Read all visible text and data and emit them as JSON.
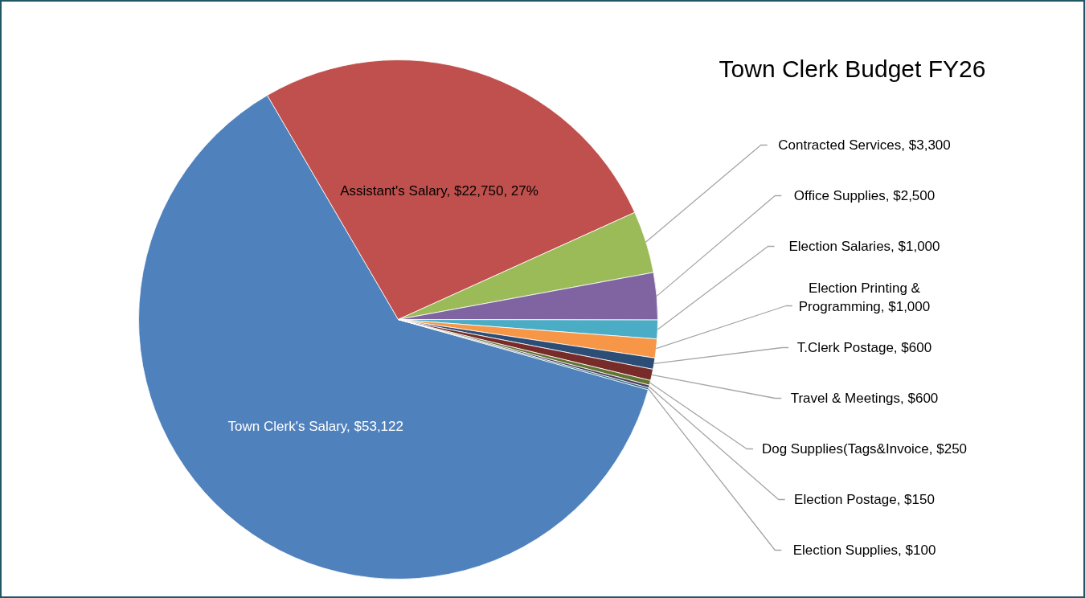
{
  "chart_data": {
    "type": "pie",
    "title": "Town Clerk Budget FY26",
    "categories": [
      "Town Clerk's Salary",
      "Assistant's Salary",
      "Contracted Services",
      "Office Supplies",
      "Election Salaries",
      "Election Printing & Programming",
      "T.Clerk Postage",
      "Travel & Meetings",
      "Dog Supplies(Tags&Invoice",
      "Election Postage",
      "Election Supplies"
    ],
    "values": [
      53122,
      22750,
      3300,
      2500,
      1000,
      1000,
      600,
      600,
      250,
      150,
      100
    ],
    "colors": [
      "#4f81bd",
      "#c0504d",
      "#9bbb59",
      "#8064a2",
      "#4bacc6",
      "#f79646",
      "#2c4d75",
      "#772c2a",
      "#5f7530",
      "#4d3b62",
      "#276a7c"
    ],
    "value_labels": [
      "$53,122",
      "$22,750, 27%",
      "$3,300",
      "$2,500",
      "$1,000",
      "$1,000",
      "$600",
      "$600",
      "$250",
      "$150",
      "$100"
    ]
  }
}
